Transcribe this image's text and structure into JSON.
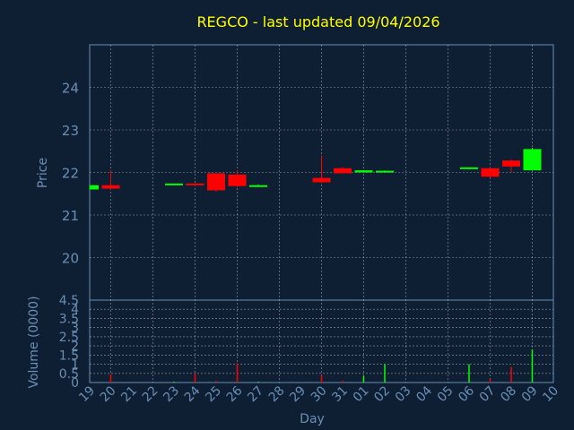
{
  "chart_data": {
    "type": "candlestick",
    "title": "REGCO - last updated 09/04/2026",
    "ylabel": "Price",
    "volume_ylabel": "Volume (0000)",
    "xlabel": "Day",
    "ylim": [
      19,
      25
    ],
    "volume_ylim": [
      0,
      4.5
    ],
    "price_ticks": [
      "20",
      "21",
      "22",
      "23",
      "24"
    ],
    "volume_ticks": [
      "0",
      "0.5",
      "1",
      "1.5",
      "2",
      "2.5",
      "3",
      "3.5",
      "4",
      "4.5"
    ],
    "x_labels": [
      "19",
      "20",
      "21",
      "22",
      "23",
      "24",
      "25",
      "26",
      "27",
      "28",
      "29",
      "30",
      "31",
      "01",
      "02",
      "03",
      "04",
      "05",
      "06",
      "07",
      "08",
      "09",
      "10"
    ],
    "colors": {
      "up": "#00ff00",
      "down": "#ff0000",
      "title": "#ffff00",
      "axis": "#6a8fb5",
      "background": "#0f1f33"
    },
    "grid": true,
    "candles": [
      {
        "day": "19",
        "open": 21.6,
        "close": 21.7,
        "high": 21.7,
        "low": 21.6,
        "volume": 0.0
      },
      {
        "day": "20",
        "open": 21.7,
        "close": 21.62,
        "high": 22.05,
        "low": 21.6,
        "volume": 0.45
      },
      {
        "day": "23",
        "open": 21.7,
        "close": 21.74,
        "high": 21.74,
        "low": 21.7,
        "volume": 0.05
      },
      {
        "day": "24",
        "open": 21.74,
        "close": 21.7,
        "high": 21.75,
        "low": 21.68,
        "volume": 0.5
      },
      {
        "day": "25",
        "open": 21.98,
        "close": 21.58,
        "high": 21.98,
        "low": 21.55,
        "volume": 0.1
      },
      {
        "day": "26",
        "open": 21.95,
        "close": 21.68,
        "high": 22.05,
        "low": 21.65,
        "volume": 1.05
      },
      {
        "day": "27",
        "open": 21.68,
        "close": 21.7,
        "high": 21.72,
        "low": 21.68,
        "volume": 0.05
      },
      {
        "day": "30",
        "open": 21.87,
        "close": 21.77,
        "high": 22.4,
        "low": 21.75,
        "volume": 0.4
      },
      {
        "day": "31",
        "open": 22.1,
        "close": 21.98,
        "high": 22.12,
        "low": 21.98,
        "volume": 0.1
      },
      {
        "day": "01",
        "open": 22.0,
        "close": 22.05,
        "high": 22.05,
        "low": 22.0,
        "volume": 0.35
      },
      {
        "day": "02",
        "open": 22.0,
        "close": 22.04,
        "high": 22.05,
        "low": 22.0,
        "volume": 1.0
      },
      {
        "day": "06",
        "open": 22.08,
        "close": 22.12,
        "high": 22.12,
        "low": 22.08,
        "volume": 1.0
      },
      {
        "day": "07",
        "open": 22.1,
        "close": 21.9,
        "high": 22.12,
        "low": 21.88,
        "volume": 0.2
      },
      {
        "day": "08",
        "open": 22.28,
        "close": 22.14,
        "high": 22.3,
        "low": 22.0,
        "volume": 0.85
      },
      {
        "day": "09",
        "open": 22.05,
        "close": 22.55,
        "high": 22.58,
        "low": 22.05,
        "volume": 1.8
      }
    ]
  }
}
